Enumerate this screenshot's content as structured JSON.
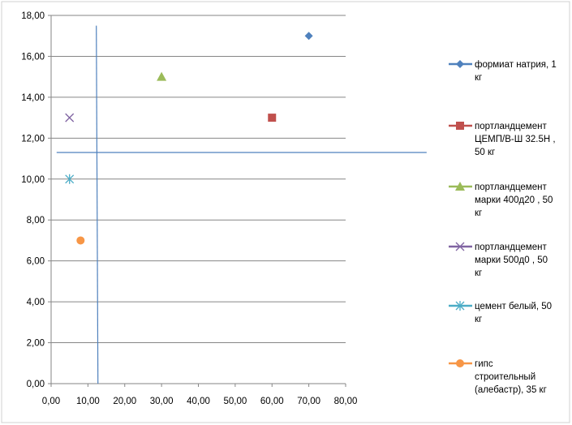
{
  "chart_data": {
    "type": "scatter",
    "title": "",
    "xlabel": "",
    "ylabel": "",
    "xlim": [
      0,
      80
    ],
    "ylim": [
      0,
      18
    ],
    "x_ticks": [
      "0,00",
      "10,00",
      "20,00",
      "30,00",
      "40,00",
      "50,00",
      "60,00",
      "70,00",
      "80,00"
    ],
    "y_ticks": [
      "0,00",
      "2,00",
      "4,00",
      "6,00",
      "8,00",
      "10,00",
      "12,00",
      "14,00",
      "16,00",
      "18,00"
    ],
    "grid": "horizontal",
    "legend_position": "right",
    "series": [
      {
        "name": "формиат натрия, 1 кг",
        "label_lines": [
          "формиат натрия,  1",
          "кг"
        ],
        "marker": "diamond",
        "color": "#4F81BD",
        "x": [
          70
        ],
        "y": [
          17
        ]
      },
      {
        "name": "портландцемент ЦЕМП/В-Ш 32.5Н , 50 кг",
        "label_lines": [
          "портландцемент",
          "ЦЕМП/В-Ш  32.5Н ,",
          "50 кг"
        ],
        "marker": "square",
        "color": "#C0504D",
        "x": [
          60
        ],
        "y": [
          13
        ]
      },
      {
        "name": "портландцемент марки 400д20 , 50 кг",
        "label_lines": [
          "портландцемент",
          "марки 400д20 , 50",
          "кг"
        ],
        "marker": "triangle",
        "color": "#9BBB59",
        "x": [
          30
        ],
        "y": [
          15
        ]
      },
      {
        "name": "портландцемент марки 500д0 , 50 кг",
        "label_lines": [
          "портландцемент",
          "марки 500д0  , 50",
          "кг"
        ],
        "marker": "x",
        "color": "#8064A2",
        "x": [
          5
        ],
        "y": [
          13
        ]
      },
      {
        "name": "цемент белый, 50 кг",
        "label_lines": [
          "цемент белый, 50",
          "кг"
        ],
        "marker": "star",
        "color": "#4BACC6",
        "x": [
          5
        ],
        "y": [
          10
        ]
      },
      {
        "name": "гипс строительный (алебастр), 35 кг",
        "label_lines": [
          "гипс",
          "строительный",
          "(алебастр), 35 кг"
        ],
        "marker": "circle",
        "color": "#F79646",
        "x": [
          8
        ],
        "y": [
          7
        ]
      }
    ],
    "reference_lines": [
      {
        "orientation": "vertical",
        "x": 12.5,
        "y_range": [
          0,
          17.5
        ],
        "color": "#4F81BD"
      },
      {
        "orientation": "horizontal",
        "y": 11.3,
        "x_range": [
          1.5,
          102
        ],
        "color": "#4F81BD"
      }
    ]
  }
}
